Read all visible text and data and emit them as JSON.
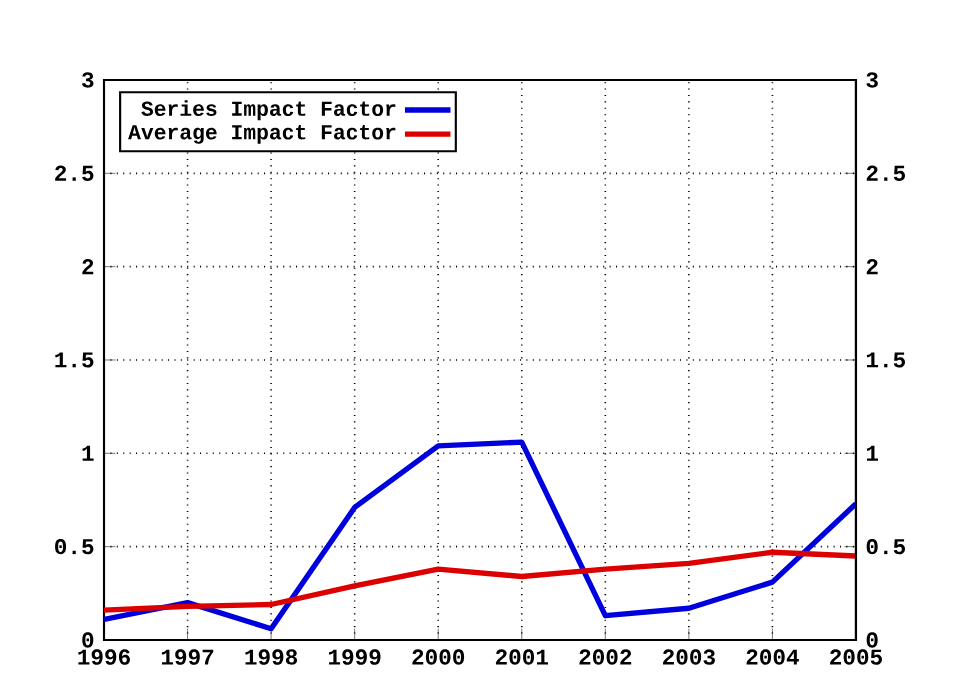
{
  "chart_data": {
    "type": "line",
    "x": [
      1996,
      1997,
      1998,
      1999,
      2000,
      2001,
      2002,
      2003,
      2004,
      2005
    ],
    "series": [
      {
        "name": "Series Impact Factor",
        "color": "#0000dd",
        "values": [
          0.11,
          0.2,
          0.06,
          0.71,
          1.04,
          1.06,
          0.13,
          0.17,
          0.31,
          0.73
        ]
      },
      {
        "name": "Average Impact Factor",
        "color": "#dd0000",
        "values": [
          0.16,
          0.18,
          0.19,
          0.29,
          0.38,
          0.34,
          0.38,
          0.41,
          0.47,
          0.45
        ]
      }
    ],
    "xlim": [
      1996,
      2005
    ],
    "xticks": [
      1996,
      1997,
      1998,
      1999,
      2000,
      2001,
      2002,
      2003,
      2004,
      2005
    ],
    "ylim": [
      0,
      3
    ],
    "yticks": [
      0,
      0.5,
      1,
      1.5,
      2,
      2.5,
      3
    ],
    "y2lim": [
      0,
      3
    ],
    "y2ticks": [
      0,
      0.5,
      1,
      1.5,
      2,
      2.5,
      3
    ],
    "grid": true,
    "legend": "top left",
    "marker": "none",
    "line_style": "solid"
  }
}
